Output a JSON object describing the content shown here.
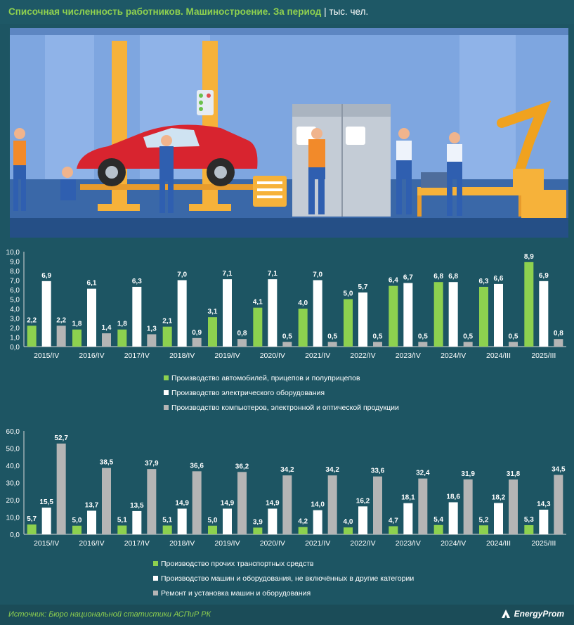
{
  "header": {
    "title_main": "Списочная численность работников. Машиностроение. За период",
    "title_sep": " | ",
    "title_unit": "тыс. чел."
  },
  "footer": {
    "source": "Источник: Бюро национальной статистики АСПиР РК",
    "logo_text": "EnergyProm"
  },
  "colors": {
    "green": "#8dd14f",
    "white": "#ffffff",
    "gray": "#b5b5b5",
    "bg": "#1d5563"
  },
  "chart_data": [
    {
      "type": "bar",
      "categories": [
        "2015/IV",
        "2016/IV",
        "2017/IV",
        "2018/IV",
        "2019/IV",
        "2020/IV",
        "2021/IV",
        "2022/IV",
        "2023/IV",
        "2024/IV",
        "2024/III",
        "2025/III"
      ],
      "ylim": [
        0,
        10
      ],
      "yticks": [
        "0,0",
        "1,0",
        "2,0",
        "3,0",
        "4,0",
        "5,0",
        "6,0",
        "7,0",
        "8,0",
        "9,0",
        "10,0"
      ],
      "series": [
        {
          "name": "Производство автомобилей, прицепов и полуприцепов",
          "color": "green",
          "values": [
            2.2,
            1.8,
            1.8,
            2.1,
            3.1,
            4.1,
            4.0,
            5.0,
            6.4,
            6.8,
            6.3,
            8.9
          ],
          "labels": [
            "2,2",
            "1,8",
            "1,8",
            "2,1",
            "3,1",
            "4,1",
            "4,0",
            "5,0",
            "6,4",
            "6,8",
            "6,3",
            "8,9"
          ]
        },
        {
          "name": "Производство электрического оборудования",
          "color": "white",
          "values": [
            6.9,
            6.1,
            6.3,
            7.0,
            7.1,
            7.1,
            7.0,
            5.7,
            6.7,
            6.8,
            6.6,
            6.9
          ],
          "labels": [
            "6,9",
            "6,1",
            "6,3",
            "7,0",
            "7,1",
            "7,1",
            "7,0",
            "5,7",
            "6,7",
            "6,8",
            "6,6",
            "6,9"
          ]
        },
        {
          "name": "Производство компьютеров, электронной и оптической продукции",
          "color": "gray",
          "values": [
            2.2,
            1.4,
            1.3,
            0.9,
            0.8,
            0.5,
            0.5,
            0.5,
            0.5,
            0.5,
            0.5,
            0.8
          ],
          "labels": [
            "2,2",
            "1,4",
            "1,3",
            "0,9",
            "0,8",
            "0,5",
            "0,5",
            "0,5",
            "0,5",
            "0,5",
            "0,5",
            "0,8"
          ]
        }
      ]
    },
    {
      "type": "bar",
      "categories": [
        "2015/IV",
        "2016/IV",
        "2017/IV",
        "2018/IV",
        "2019/IV",
        "2020/IV",
        "2021/IV",
        "2022/IV",
        "2023/IV",
        "2024/IV",
        "2024/III",
        "2025/III"
      ],
      "ylim": [
        0,
        60
      ],
      "yticks": [
        "0,0",
        "10,0",
        "20,0",
        "30,0",
        "40,0",
        "50,0",
        "60,0"
      ],
      "series": [
        {
          "name": "Производство прочих транспортных средств",
          "color": "green",
          "values": [
            5.7,
            5.0,
            5.1,
            5.1,
            5.0,
            3.9,
            4.2,
            4.0,
            4.7,
            5.4,
            5.2,
            5.3
          ],
          "labels": [
            "5,7",
            "5,0",
            "5,1",
            "5,1",
            "5,0",
            "3,9",
            "4,2",
            "4,0",
            "4,7",
            "5,4",
            "5,2",
            "5,3"
          ]
        },
        {
          "name": "Производство машин и оборудования, не включённых в другие категории",
          "color": "white",
          "values": [
            15.5,
            13.7,
            13.5,
            14.9,
            14.9,
            14.9,
            14.0,
            16.2,
            18.1,
            18.6,
            18.2,
            14.3
          ],
          "labels": [
            "15,5",
            "13,7",
            "13,5",
            "14,9",
            "14,9",
            "14,9",
            "14,0",
            "16,2",
            "18,1",
            "18,6",
            "18,2",
            "14,3"
          ]
        },
        {
          "name": "Ремонт и установка машин и оборудования",
          "color": "gray",
          "values": [
            52.7,
            38.5,
            37.9,
            36.6,
            36.2,
            34.2,
            34.2,
            33.6,
            32.4,
            31.9,
            31.8,
            34.5
          ],
          "labels": [
            "52,7",
            "38,5",
            "37,9",
            "36,6",
            "36,2",
            "34,2",
            "34,2",
            "33,6",
            "32,4",
            "31,9",
            "31,8",
            "34,5"
          ]
        }
      ]
    }
  ]
}
